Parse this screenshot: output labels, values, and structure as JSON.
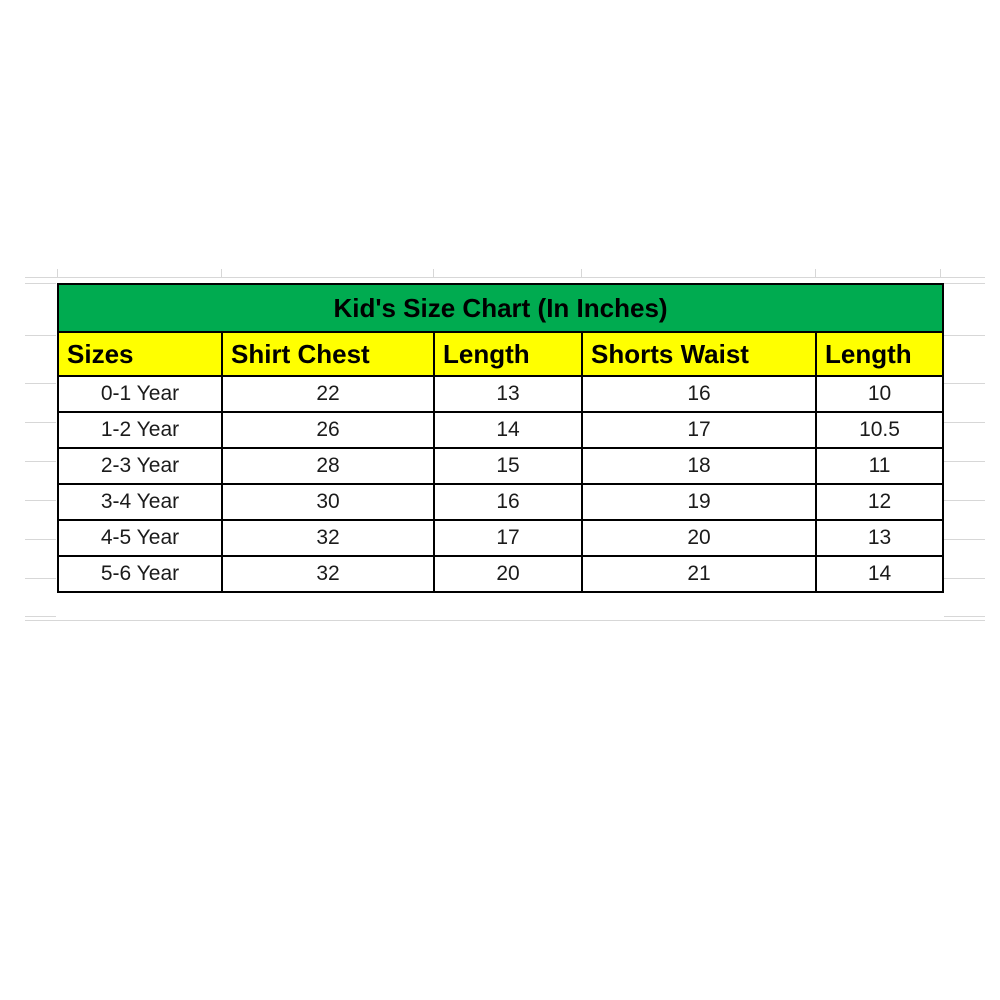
{
  "colors": {
    "title_bg": "#00ab50",
    "header_bg": "#ffff00",
    "table_border": "#000000",
    "page_bg": "#ffffff",
    "gridline": "#d7d7d7"
  },
  "chart_data": {
    "type": "table",
    "title": "Kid's Size Chart (In Inches)",
    "units": "inches",
    "columns": [
      "Sizes",
      "Shirt Chest",
      "Length",
      "Shorts Waist",
      "Length"
    ],
    "rows": [
      [
        "0-1 Year",
        "22",
        "13",
        "16",
        "10"
      ],
      [
        "1-2 Year",
        "26",
        "14",
        "17",
        "10.5"
      ],
      [
        "2-3 Year",
        "28",
        "15",
        "18",
        "11"
      ],
      [
        "3-4 Year",
        "30",
        "16",
        "19",
        "12"
      ],
      [
        "4-5 Year",
        "32",
        "17",
        "20",
        "13"
      ],
      [
        "5-6 Year",
        "32",
        "20",
        "21",
        "14"
      ]
    ]
  }
}
